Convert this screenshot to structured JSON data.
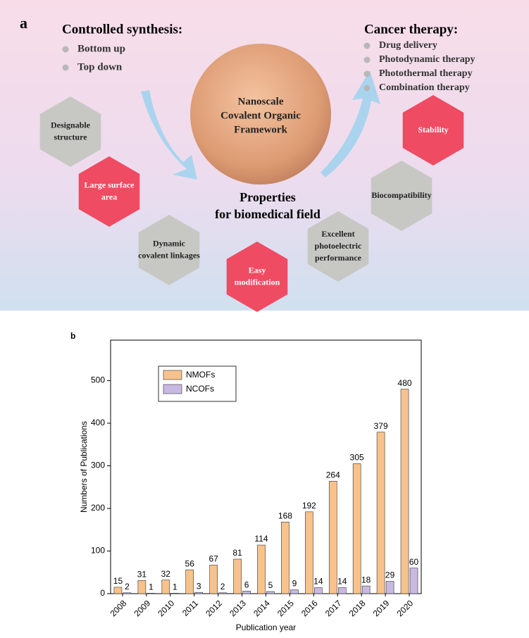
{
  "diagram": {
    "label": "a",
    "synthesis": {
      "title": "Controlled synthesis:",
      "items": [
        "Bottom up",
        "Top down"
      ]
    },
    "therapy": {
      "title": "Cancer therapy:",
      "items": [
        "Drug delivery",
        "Photodynamic therapy",
        "Photothermal therapy",
        "Combination therapy"
      ]
    },
    "core": [
      "Nanoscale",
      "Covalent Organic",
      "Framework"
    ],
    "properties": [
      "Properties",
      "for biomedical field"
    ],
    "hexagons": [
      {
        "lines": [
          "Designable",
          "structure"
        ]
      },
      {
        "lines": [
          "Large surface",
          "area"
        ]
      },
      {
        "lines": [
          "Dynamic",
          "covalent linkages"
        ]
      },
      {
        "lines": [
          "Easy",
          "modification"
        ]
      },
      {
        "lines": [
          "Excellent",
          "photoelectric",
          "performance"
        ]
      },
      {
        "lines": [
          "Biocompatibility"
        ]
      },
      {
        "lines": [
          "Stability"
        ]
      }
    ]
  },
  "chart_data": {
    "type": "bar",
    "panel_label": "b",
    "x_label": "Publication year",
    "y_label": "Numbers of Publications",
    "categories": [
      "2008",
      "2009",
      "2010",
      "2011",
      "2012",
      "2013",
      "2014",
      "2015",
      "2016",
      "2017",
      "2018",
      "2019",
      "2020"
    ],
    "series": [
      {
        "name": "NMOFs",
        "color": "#f8c28c",
        "values": [
          15,
          31,
          32,
          56,
          67,
          81,
          114,
          168,
          192,
          264,
          305,
          379,
          480
        ]
      },
      {
        "name": "NCOFs",
        "color": "#c9b9e2",
        "values": [
          2,
          1,
          1,
          3,
          2,
          6,
          5,
          9,
          14,
          14,
          18,
          29,
          60
        ]
      }
    ],
    "ylim": [
      0,
      595
    ],
    "yticks": [
      0,
      100,
      200,
      300,
      400,
      500
    ],
    "legend": "upper left"
  }
}
